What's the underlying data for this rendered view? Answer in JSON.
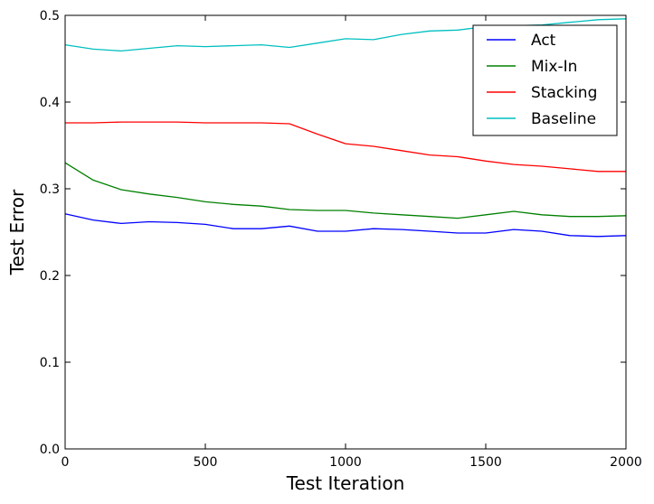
{
  "chart_data": {
    "type": "line",
    "title": "",
    "xlabel": "Test Iteration",
    "ylabel": "Test Error",
    "xlim": [
      0,
      2000
    ],
    "ylim": [
      0.0,
      0.5
    ],
    "x_ticks": [
      "0",
      "500",
      "1000",
      "1500",
      "2000"
    ],
    "y_ticks": [
      "0.0",
      "0.1",
      "0.2",
      "0.3",
      "0.4",
      "0.5"
    ],
    "grid": false,
    "legend_position": "top-right",
    "x": [
      0,
      100,
      200,
      300,
      400,
      500,
      600,
      700,
      800,
      900,
      1000,
      1100,
      1200,
      1300,
      1400,
      1500,
      1600,
      1700,
      1800,
      1900,
      2000
    ],
    "series": [
      {
        "name": "Act",
        "color": "#0000ff",
        "values": [
          0.271,
          0.264,
          0.26,
          0.262,
          0.261,
          0.259,
          0.254,
          0.254,
          0.257,
          0.251,
          0.251,
          0.254,
          0.253,
          0.251,
          0.249,
          0.249,
          0.253,
          0.251,
          0.246,
          0.245,
          0.246
        ]
      },
      {
        "name": "Mix-In",
        "color": "#008000",
        "values": [
          0.33,
          0.31,
          0.299,
          0.294,
          0.29,
          0.285,
          0.282,
          0.28,
          0.276,
          0.275,
          0.275,
          0.272,
          0.27,
          0.268,
          0.266,
          0.27,
          0.274,
          0.27,
          0.268,
          0.268,
          0.269
        ]
      },
      {
        "name": "Stacking",
        "color": "#ff0000",
        "values": [
          0.376,
          0.376,
          0.377,
          0.377,
          0.377,
          0.376,
          0.376,
          0.376,
          0.375,
          0.363,
          0.352,
          0.349,
          0.344,
          0.339,
          0.337,
          0.332,
          0.328,
          0.326,
          0.323,
          0.32,
          0.32
        ]
      },
      {
        "name": "Baseline",
        "color": "#00bfbf",
        "values": [
          0.466,
          0.461,
          0.459,
          0.462,
          0.465,
          0.464,
          0.465,
          0.466,
          0.463,
          0.468,
          0.473,
          0.472,
          0.478,
          0.482,
          0.483,
          0.487,
          0.488,
          0.489,
          0.492,
          0.495,
          0.496
        ]
      }
    ]
  }
}
